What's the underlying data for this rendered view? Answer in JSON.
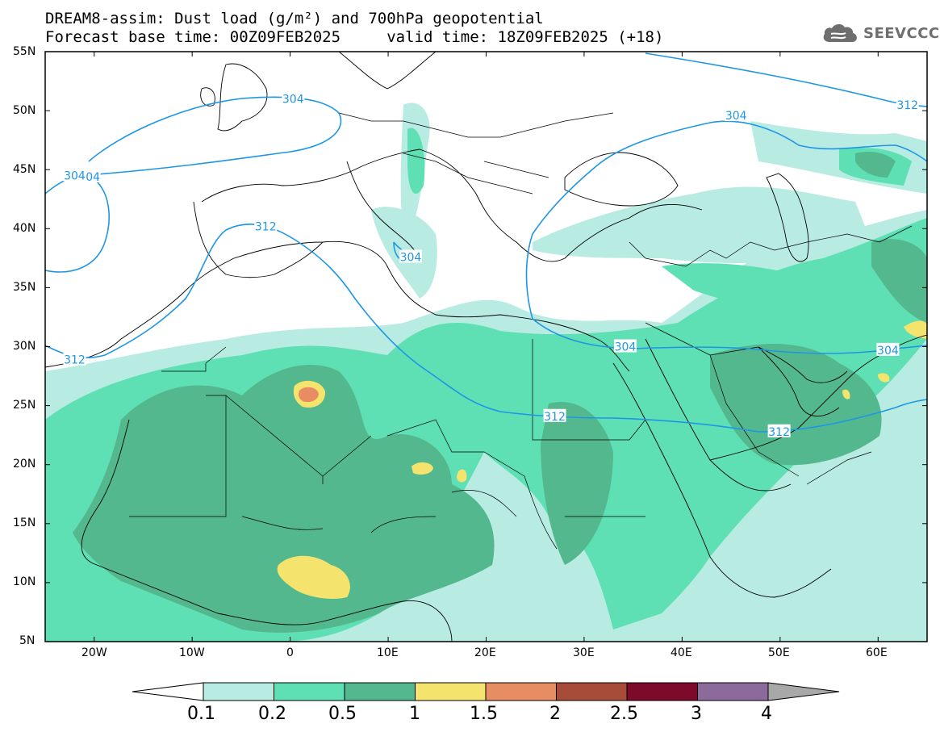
{
  "header": {
    "title_line1": "DREAM8-assim: Dust load (g/m²) and 700hPa geopotential",
    "title_line2": "Forecast base time: 00Z09FEB2025     valid time: 18Z09FEB2025 (+18)",
    "logo_text": "SEEVCCC"
  },
  "map": {
    "variable": "Dust load (g/m²)",
    "contour_variable": "700hPa geopotential",
    "lon_range": [
      -25,
      65
    ],
    "lat_range": [
      5,
      55
    ],
    "lat_ticks": [
      "55N",
      "50N",
      "45N",
      "40N",
      "35N",
      "30N",
      "25N",
      "20N",
      "15N",
      "10N",
      "5N"
    ],
    "lon_ticks": [
      "20W",
      "10W",
      "0",
      "10E",
      "20E",
      "30E",
      "40E",
      "50E",
      "60E"
    ],
    "contour_labels": [
      {
        "text": "304",
        "lon": -20.5,
        "lat": 44.4
      },
      {
        "text": "304",
        "lon": -22.0,
        "lat": 44.5
      },
      {
        "text": "304",
        "lon": 0.3,
        "lat": 51.0
      },
      {
        "text": "312",
        "lon": -2.5,
        "lat": 40.2
      },
      {
        "text": "304",
        "lon": 12.3,
        "lat": 37.6
      },
      {
        "text": "312",
        "lon": -22.0,
        "lat": 28.9
      },
      {
        "text": "304",
        "lon": 45.5,
        "lat": 49.6
      },
      {
        "text": "312",
        "lon": 63.0,
        "lat": 50.5
      },
      {
        "text": "304",
        "lon": 34.2,
        "lat": 30.0
      },
      {
        "text": "304",
        "lon": 61.0,
        "lat": 29.7
      },
      {
        "text": "312",
        "lon": 27.0,
        "lat": 24.1
      },
      {
        "text": "312",
        "lon": 49.9,
        "lat": 22.8
      }
    ],
    "contour_color": "#1e96e6"
  },
  "colorbar": {
    "levels": [
      "0.1",
      "0.2",
      "0.5",
      "1",
      "1.5",
      "2",
      "2.5",
      "3",
      "4"
    ],
    "colors": [
      "#ffffff",
      "#b8ece2",
      "#5ee0b4",
      "#54b88e",
      "#f4e46e",
      "#e88c64",
      "#a84c3a",
      "#7c0a28",
      "#8c6a9c",
      "#a8a8a8"
    ]
  }
}
